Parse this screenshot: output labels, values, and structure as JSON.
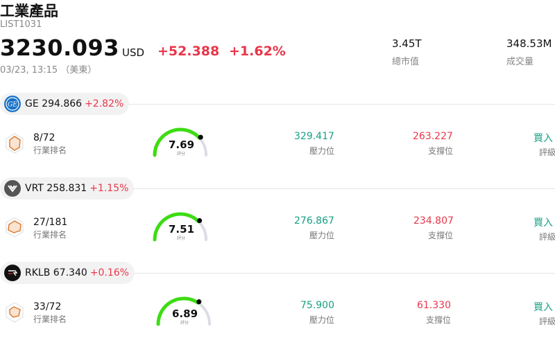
{
  "header": {
    "title": "工業產品",
    "code": "LIST1031",
    "price": "3230.093",
    "currency": "USD",
    "change": "+52.388",
    "change_pct": "+1.62%",
    "timestamp": "03/23, 13:15 （美東）",
    "stats": [
      {
        "value": "3.45T",
        "label": "總市值"
      },
      {
        "value": "348.53M",
        "label": "成交量"
      }
    ]
  },
  "stocks": [
    {
      "ticker": "GE",
      "price": "294.866",
      "change_pct": "+2.82%",
      "rank": "8/72",
      "rank_label": "行業排名",
      "score": "7.69",
      "score_label": "評分",
      "score_level": 0.769,
      "resistance": "329.417",
      "resistance_label": "壓力位",
      "support": "263.227",
      "support_label": "支撐位",
      "rating": "買入",
      "rating_label": "評級",
      "logo_icon": "ge-logo-icon",
      "logo_color": "#1a73c8"
    },
    {
      "ticker": "VRT",
      "price": "258.831",
      "change_pct": "+1.15%",
      "rank": "27/181",
      "rank_label": "行業排名",
      "score": "7.51",
      "score_label": "評分",
      "score_level": 0.751,
      "resistance": "276.867",
      "resistance_label": "壓力位",
      "support": "234.807",
      "support_label": "支撐位",
      "rating": "買入",
      "rating_label": "評級",
      "logo_icon": "vrt-logo-icon",
      "logo_color": "#555555"
    },
    {
      "ticker": "RKLB",
      "price": "67.340",
      "change_pct": "+0.16%",
      "rank": "33/72",
      "rank_label": "行業排名",
      "score": "6.89",
      "score_label": "評分",
      "score_level": 0.689,
      "resistance": "75.900",
      "resistance_label": "壓力位",
      "support": "61.330",
      "support_label": "支撐位",
      "rating": "買入",
      "rating_label": "評級",
      "logo_icon": "rklb-logo-icon",
      "logo_color": "#111111"
    }
  ],
  "colors": {
    "up": "#e8364a",
    "green": "#16a085",
    "gauge_fill": "#3ddc13",
    "gauge_track": "#dcdce6"
  }
}
